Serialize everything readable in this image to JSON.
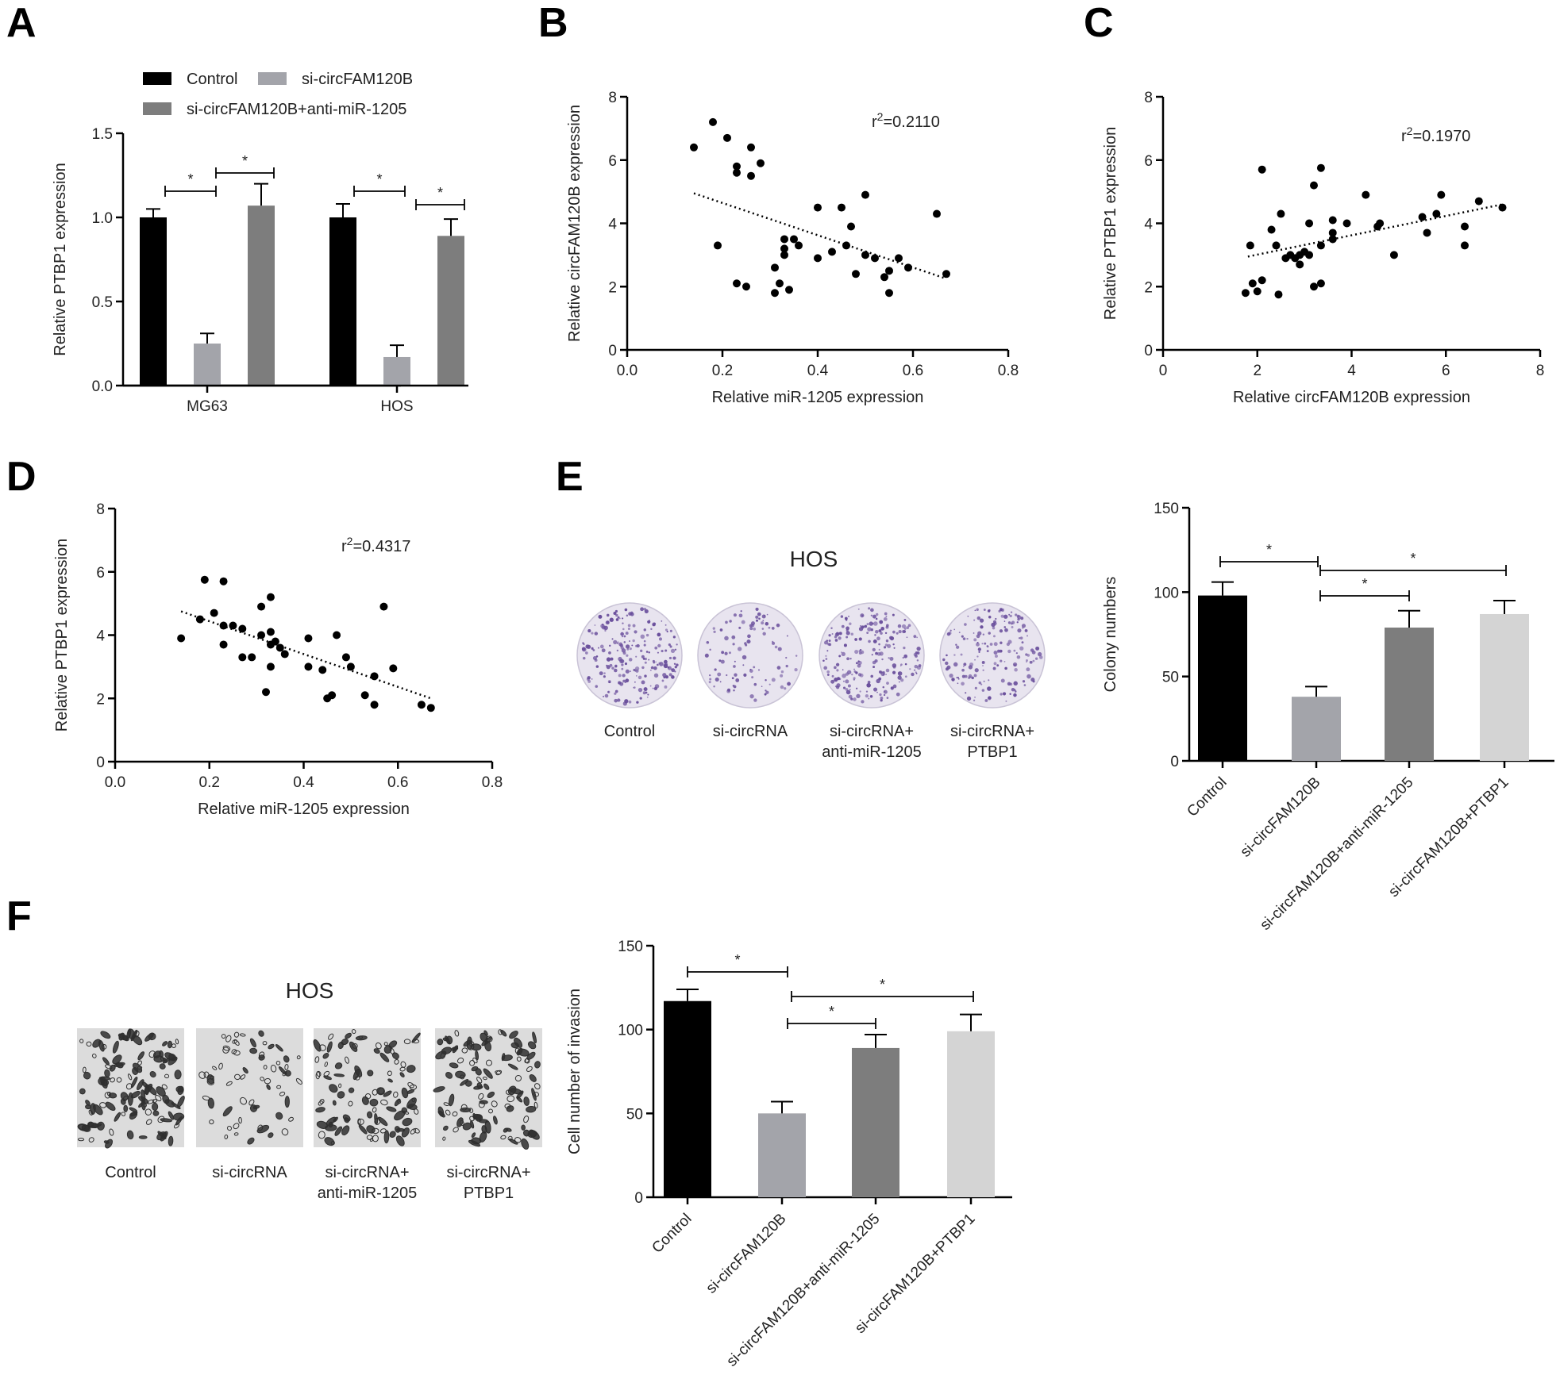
{
  "panel_letters": [
    "A",
    "B",
    "C",
    "D",
    "E",
    "F"
  ],
  "colors": {
    "control": "#000000",
    "si": "#a3a4aa",
    "combo": "#7d7d7d",
    "ptbp1": "#d4d4d4",
    "stain_purple": "#6a4f9c",
    "plate_bg": "#e8e4ef",
    "micro_bg": "#dcdcdc",
    "micro_cell": "#2f2f2f"
  },
  "chart_data": [
    {
      "id": "A",
      "type": "bar",
      "groups": [
        "MG63",
        "HOS"
      ],
      "series": [
        {
          "name": "Control",
          "values": [
            1.0,
            1.0
          ],
          "errors": [
            0.05,
            0.08
          ]
        },
        {
          "name": "si-circFAM120B",
          "values": [
            0.25,
            0.17
          ],
          "errors": [
            0.06,
            0.07
          ]
        },
        {
          "name": "si-circFAM120B+anti-miR-1205",
          "values": [
            1.07,
            0.89
          ],
          "errors": [
            0.13,
            0.1
          ]
        }
      ],
      "ylabel": "Relative PTBP1 expression",
      "ylim": [
        0,
        1.5
      ],
      "yticks": [
        "0.0",
        "0.5",
        "1.0",
        "1.5"
      ],
      "significance": "*",
      "legend": "top"
    },
    {
      "id": "B",
      "type": "scatter",
      "xlabel": "Relative miR-1205 expression",
      "ylabel": "Relative circFAM120B expression",
      "xlim": [
        0,
        0.8
      ],
      "ylim": [
        0,
        8
      ],
      "xticks": [
        "0.0",
        "0.2",
        "0.4",
        "0.6",
        "0.8"
      ],
      "yticks": [
        "0",
        "2",
        "4",
        "6",
        "8"
      ],
      "r2_prefix": "r",
      "r2_sup": "2",
      "r2_value": "=0.2110",
      "trend": [
        [
          0.14,
          4.95
        ],
        [
          0.67,
          2.25
        ]
      ],
      "points": [
        [
          0.14,
          6.4
        ],
        [
          0.18,
          7.2
        ],
        [
          0.21,
          6.7
        ],
        [
          0.23,
          5.6
        ],
        [
          0.23,
          5.8
        ],
        [
          0.26,
          6.4
        ],
        [
          0.26,
          5.5
        ],
        [
          0.28,
          5.9
        ],
        [
          0.19,
          3.3
        ],
        [
          0.23,
          2.1
        ],
        [
          0.25,
          2.0
        ],
        [
          0.31,
          1.8
        ],
        [
          0.32,
          2.1
        ],
        [
          0.31,
          2.6
        ],
        [
          0.34,
          1.9
        ],
        [
          0.33,
          3.0
        ],
        [
          0.33,
          3.2
        ],
        [
          0.33,
          3.5
        ],
        [
          0.35,
          3.5
        ],
        [
          0.36,
          3.3
        ],
        [
          0.4,
          2.9
        ],
        [
          0.4,
          4.5
        ],
        [
          0.43,
          3.1
        ],
        [
          0.45,
          4.5
        ],
        [
          0.46,
          3.3
        ],
        [
          0.47,
          3.9
        ],
        [
          0.48,
          2.4
        ],
        [
          0.5,
          4.9
        ],
        [
          0.5,
          3.0
        ],
        [
          0.52,
          2.9
        ],
        [
          0.54,
          2.3
        ],
        [
          0.55,
          2.5
        ],
        [
          0.55,
          1.8
        ],
        [
          0.57,
          2.9
        ],
        [
          0.59,
          2.6
        ],
        [
          0.65,
          4.3
        ],
        [
          0.67,
          2.4
        ]
      ]
    },
    {
      "id": "C",
      "type": "scatter",
      "xlabel": "Relative circFAM120B expression",
      "ylabel": "Relative PTBP1 expression",
      "xlim": [
        0,
        8
      ],
      "ylim": [
        0,
        8
      ],
      "xticks": [
        "0",
        "2",
        "4",
        "6",
        "8"
      ],
      "yticks": [
        "0",
        "2",
        "4",
        "6",
        "8"
      ],
      "r2_prefix": "r",
      "r2_sup": "2",
      "r2_value": "=0.1970",
      "trend": [
        [
          1.8,
          2.95
        ],
        [
          7.2,
          4.6
        ]
      ],
      "points": [
        [
          1.75,
          1.8
        ],
        [
          1.85,
          3.3
        ],
        [
          1.9,
          2.1
        ],
        [
          2.0,
          1.85
        ],
        [
          2.1,
          2.2
        ],
        [
          2.1,
          5.7
        ],
        [
          2.3,
          3.8
        ],
        [
          2.4,
          3.3
        ],
        [
          2.45,
          1.75
        ],
        [
          2.5,
          4.3
        ],
        [
          2.6,
          2.9
        ],
        [
          2.7,
          3.0
        ],
        [
          2.8,
          2.9
        ],
        [
          2.9,
          3.0
        ],
        [
          2.9,
          2.7
        ],
        [
          3.0,
          3.1
        ],
        [
          3.1,
          3.0
        ],
        [
          3.1,
          4.0
        ],
        [
          3.2,
          2.0
        ],
        [
          3.2,
          5.2
        ],
        [
          3.35,
          2.1
        ],
        [
          3.35,
          3.3
        ],
        [
          3.35,
          5.75
        ],
        [
          3.6,
          3.5
        ],
        [
          3.6,
          3.7
        ],
        [
          3.6,
          4.1
        ],
        [
          3.9,
          4.0
        ],
        [
          4.3,
          4.9
        ],
        [
          4.55,
          3.9
        ],
        [
          4.6,
          4.0
        ],
        [
          4.9,
          3.0
        ],
        [
          5.5,
          4.2
        ],
        [
          5.6,
          3.7
        ],
        [
          5.8,
          4.3
        ],
        [
          5.9,
          4.9
        ],
        [
          6.4,
          3.3
        ],
        [
          6.4,
          3.9
        ],
        [
          6.7,
          4.7
        ],
        [
          7.2,
          4.5
        ]
      ]
    },
    {
      "id": "D",
      "type": "scatter",
      "xlabel": "Relative miR-1205 expression",
      "ylabel": "Relative PTBP1 expression",
      "xlim": [
        0,
        0.8
      ],
      "ylim": [
        0,
        8
      ],
      "xticks": [
        "0.0",
        "0.2",
        "0.4",
        "0.6",
        "0.8"
      ],
      "yticks": [
        "0",
        "2",
        "4",
        "6",
        "8"
      ],
      "r2_prefix": "r",
      "r2_sup": "2",
      "r2_value": "=0.4317",
      "trend": [
        [
          0.14,
          4.75
        ],
        [
          0.67,
          2.0
        ]
      ],
      "points": [
        [
          0.14,
          3.9
        ],
        [
          0.18,
          4.5
        ],
        [
          0.19,
          5.75
        ],
        [
          0.21,
          4.7
        ],
        [
          0.23,
          3.7
        ],
        [
          0.23,
          4.3
        ],
        [
          0.23,
          5.7
        ],
        [
          0.25,
          4.3
        ],
        [
          0.27,
          4.2
        ],
        [
          0.27,
          3.3
        ],
        [
          0.29,
          3.3
        ],
        [
          0.31,
          4.9
        ],
        [
          0.31,
          4.0
        ],
        [
          0.32,
          2.2
        ],
        [
          0.33,
          3.0
        ],
        [
          0.33,
          3.7
        ],
        [
          0.33,
          4.1
        ],
        [
          0.33,
          5.2
        ],
        [
          0.34,
          3.8
        ],
        [
          0.35,
          3.6
        ],
        [
          0.36,
          3.4
        ],
        [
          0.41,
          3.0
        ],
        [
          0.41,
          3.9
        ],
        [
          0.44,
          2.9
        ],
        [
          0.45,
          2.0
        ],
        [
          0.46,
          2.1
        ],
        [
          0.47,
          4.0
        ],
        [
          0.49,
          3.3
        ],
        [
          0.5,
          3.0
        ],
        [
          0.53,
          2.1
        ],
        [
          0.55,
          1.8
        ],
        [
          0.55,
          2.7
        ],
        [
          0.57,
          4.9
        ],
        [
          0.59,
          2.95
        ],
        [
          0.65,
          1.8
        ],
        [
          0.67,
          1.7
        ]
      ]
    },
    {
      "id": "E",
      "type": "bar",
      "categories": [
        "Control",
        "si-circFAM120B",
        "si-circFAM120B+anti-miR-1205",
        "si-circFAM120B+PTBP1"
      ],
      "values": [
        98,
        38,
        79,
        87
      ],
      "errors": [
        8,
        6,
        10,
        8
      ],
      "ylabel": "Colony numbers",
      "ylim": [
        0,
        150
      ],
      "yticks": [
        "0",
        "50",
        "100",
        "150"
      ],
      "significance": "*"
    },
    {
      "id": "F",
      "type": "bar",
      "categories": [
        "Control",
        "si-circFAM120B",
        "si-circFAM120B+anti-miR-1205",
        "si-circFAM120B+PTBP1"
      ],
      "values": [
        117,
        50,
        89,
        99
      ],
      "errors": [
        7,
        7,
        8,
        10
      ],
      "ylabel": "Cell number of invasion",
      "ylim": [
        0,
        150
      ],
      "yticks": [
        "0",
        "50",
        "100",
        "150"
      ],
      "significance": "*"
    }
  ],
  "photos": {
    "E": {
      "title": "HOS",
      "captions": [
        [
          "Control"
        ],
        [
          "si-circRNA"
        ],
        [
          "si-circRNA+",
          "anti-miR-1205"
        ],
        [
          "si-circRNA+",
          "PTBP1"
        ]
      ],
      "densities": [
        1.0,
        0.45,
        1.0,
        0.8
      ]
    },
    "F": {
      "title": "HOS",
      "captions": [
        [
          "Control"
        ],
        [
          "si-circRNA"
        ],
        [
          "si-circRNA+",
          "anti-miR-1205"
        ],
        [
          "si-circRNA+",
          "PTBP1"
        ]
      ],
      "densities": [
        1.0,
        0.5,
        0.85,
        0.95
      ]
    }
  }
}
